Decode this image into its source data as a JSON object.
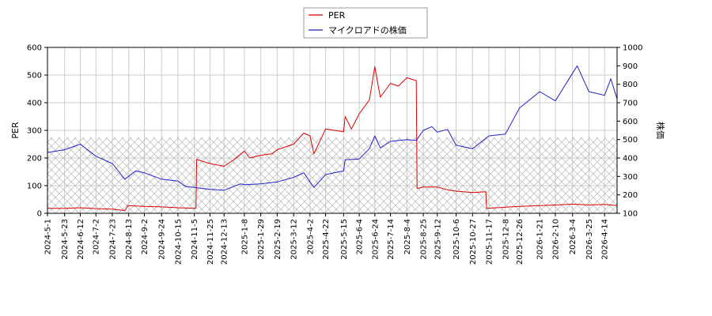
{
  "chart_data": {
    "type": "line",
    "legend": {
      "placement": "top-center",
      "entries": [
        "PER",
        "マイクロアドの株価"
      ]
    },
    "ylabel_left": "PER",
    "ylabel_right": "株価",
    "ylim_left": [
      0,
      600
    ],
    "ylim_right": [
      100,
      1000
    ],
    "yticks_left": [
      "0",
      "100",
      "200",
      "300",
      "400",
      "500",
      "600"
    ],
    "yticks_right": [
      "100",
      "200",
      "300",
      "400",
      "500",
      "600",
      "700",
      "800",
      "900",
      "1000"
    ],
    "grid": true,
    "hatched_band_left": [
      0,
      275
    ],
    "x_range": [
      "2024-05-01",
      "2026-04-30"
    ],
    "xticks": [
      "2024-5-1",
      "2024-5-23",
      "2024-6-12",
      "2024-7-2",
      "2024-7-23",
      "2024-8-13",
      "2024-9-2",
      "2024-9-24",
      "2024-10-15",
      "2024-11-5",
      "2024-11-25",
      "2024-12-13",
      "2025-1-8",
      "2025-1-29",
      "2025-2-19",
      "2025-3-12",
      "2025-4-2",
      "2025-4-22",
      "2025-5-15",
      "2025-6-4",
      "2025-6-24",
      "2025-7-14",
      "2025-8-4",
      "2025-8-25",
      "2025-9-12",
      "2025-10-6",
      "2025-10-27",
      "2025-11-17",
      "2025-12-8",
      "2025-12-26",
      "2026-1-21",
      "2026-2-10",
      "2026-3-4",
      "2026-3-25",
      "2026-4-14"
    ],
    "series": [
      {
        "name": "PER",
        "color": "#dd0000",
        "axis": "left",
        "points": [
          [
            "2024-05-01",
            18
          ],
          [
            "2024-05-23",
            18
          ],
          [
            "2024-06-12",
            20
          ],
          [
            "2024-07-02",
            17
          ],
          [
            "2024-07-23",
            15
          ],
          [
            "2024-08-08",
            10
          ],
          [
            "2024-08-12",
            28
          ],
          [
            "2024-09-02",
            25
          ],
          [
            "2024-09-24",
            23
          ],
          [
            "2024-10-15",
            20
          ],
          [
            "2024-11-07",
            18
          ],
          [
            "2024-11-08",
            195
          ],
          [
            "2024-11-25",
            180
          ],
          [
            "2024-12-13",
            170
          ],
          [
            "2024-12-26",
            195
          ],
          [
            "2025-01-08",
            225
          ],
          [
            "2025-01-15",
            200
          ],
          [
            "2025-01-29",
            210
          ],
          [
            "2025-02-12",
            215
          ],
          [
            "2025-02-19",
            230
          ],
          [
            "2025-03-12",
            250
          ],
          [
            "2025-03-25",
            290
          ],
          [
            "2025-04-02",
            280
          ],
          [
            "2025-04-07",
            215
          ],
          [
            "2025-04-22",
            305
          ],
          [
            "2025-05-15",
            295
          ],
          [
            "2025-05-17",
            350
          ],
          [
            "2025-05-25",
            305
          ],
          [
            "2025-06-04",
            360
          ],
          [
            "2025-06-17",
            410
          ],
          [
            "2025-06-24",
            530
          ],
          [
            "2025-07-01",
            420
          ],
          [
            "2025-07-14",
            470
          ],
          [
            "2025-07-24",
            460
          ],
          [
            "2025-08-04",
            490
          ],
          [
            "2025-08-16",
            480
          ],
          [
            "2025-08-17",
            90
          ],
          [
            "2025-08-25",
            95
          ],
          [
            "2025-09-12",
            95
          ],
          [
            "2025-09-25",
            85
          ],
          [
            "2025-10-06",
            80
          ],
          [
            "2025-10-27",
            75
          ],
          [
            "2025-11-13",
            78
          ],
          [
            "2025-11-14",
            18
          ],
          [
            "2025-12-08",
            22
          ],
          [
            "2025-12-26",
            25
          ],
          [
            "2026-01-21",
            28
          ],
          [
            "2026-02-10",
            30
          ],
          [
            "2026-03-04",
            33
          ],
          [
            "2026-03-25",
            30
          ],
          [
            "2026-04-14",
            32
          ],
          [
            "2026-04-30",
            28
          ]
        ]
      },
      {
        "name": "マイクロアドの株価",
        "color": "#2222cc",
        "axis": "right",
        "points": [
          [
            "2024-05-01",
            430
          ],
          [
            "2024-05-23",
            445
          ],
          [
            "2024-06-12",
            475
          ],
          [
            "2024-07-02",
            410
          ],
          [
            "2024-07-23",
            370
          ],
          [
            "2024-08-08",
            285
          ],
          [
            "2024-08-22",
            330
          ],
          [
            "2024-09-02",
            320
          ],
          [
            "2024-09-24",
            285
          ],
          [
            "2024-10-15",
            275
          ],
          [
            "2024-10-25",
            245
          ],
          [
            "2024-11-05",
            240
          ],
          [
            "2024-11-25",
            230
          ],
          [
            "2024-12-13",
            225
          ],
          [
            "2025-01-03",
            260
          ],
          [
            "2025-01-08",
            255
          ],
          [
            "2025-01-29",
            260
          ],
          [
            "2025-02-19",
            270
          ],
          [
            "2025-03-12",
            295
          ],
          [
            "2025-03-25",
            320
          ],
          [
            "2025-04-07",
            240
          ],
          [
            "2025-04-22",
            310
          ],
          [
            "2025-05-15",
            330
          ],
          [
            "2025-05-17",
            390
          ],
          [
            "2025-06-04",
            395
          ],
          [
            "2025-06-17",
            450
          ],
          [
            "2025-06-24",
            520
          ],
          [
            "2025-07-01",
            455
          ],
          [
            "2025-07-14",
            490
          ],
          [
            "2025-08-04",
            500
          ],
          [
            "2025-08-16",
            495
          ],
          [
            "2025-08-25",
            550
          ],
          [
            "2025-09-05",
            570
          ],
          [
            "2025-09-12",
            540
          ],
          [
            "2025-09-25",
            555
          ],
          [
            "2025-10-06",
            470
          ],
          [
            "2025-10-27",
            450
          ],
          [
            "2025-11-17",
            520
          ],
          [
            "2025-12-08",
            530
          ],
          [
            "2025-12-26",
            670
          ],
          [
            "2026-01-21",
            760
          ],
          [
            "2026-02-10",
            710
          ],
          [
            "2026-03-04",
            860
          ],
          [
            "2026-03-10",
            900
          ],
          [
            "2026-03-25",
            760
          ],
          [
            "2026-04-14",
            740
          ],
          [
            "2026-04-22",
            830
          ],
          [
            "2026-04-30",
            720
          ]
        ]
      }
    ]
  }
}
